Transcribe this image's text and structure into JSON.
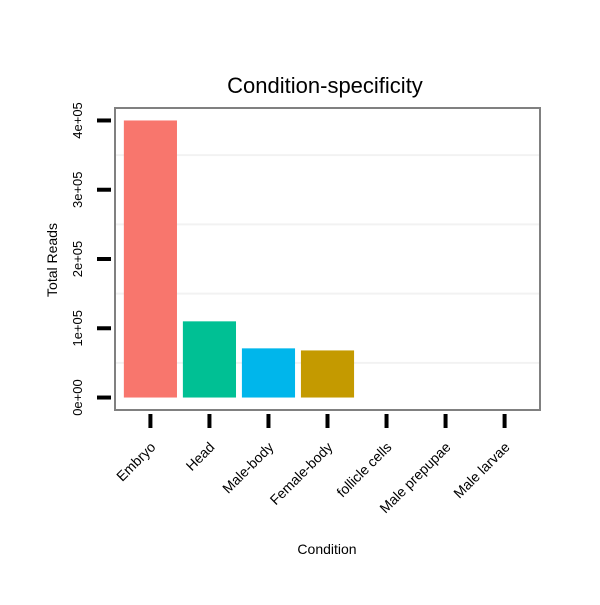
{
  "chart_data": {
    "type": "bar",
    "title": "Condition-specificity",
    "xlabel": "Condition",
    "ylabel": "Total Reads",
    "categories": [
      "Embryo",
      "Head",
      "Male-body",
      "Female-body",
      "follicle cells",
      "Male prepupae",
      "Male larvae"
    ],
    "values": [
      400000,
      110000,
      71000,
      68000,
      0,
      0,
      0
    ],
    "colors": [
      "#F8766D",
      "#00C094",
      "#00B6EB",
      "#C49A00",
      "#A58AFF",
      "#FB61D7",
      "#53B400"
    ],
    "yticks": [
      0,
      100000,
      200000,
      300000,
      400000
    ],
    "ytick_labels": [
      "0e+00",
      "1e+05",
      "2e+05",
      "3e+05",
      "4e+05"
    ],
    "ylim": [
      -18000,
      418000
    ],
    "grid": true,
    "legend": "none"
  }
}
